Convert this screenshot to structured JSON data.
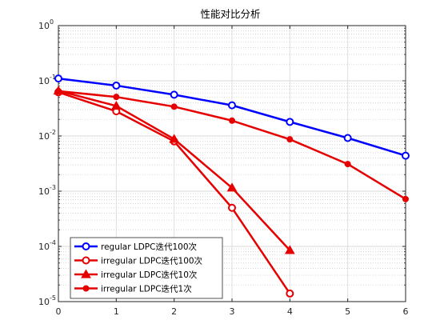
{
  "chart_data": {
    "type": "line",
    "title": "性能对比分析",
    "xlabel": "",
    "ylabel": "",
    "x": [
      0,
      1,
      2,
      3,
      4,
      5,
      6
    ],
    "xlim": [
      0,
      6
    ],
    "ylim": [
      1e-05,
      1
    ],
    "yscale": "log",
    "x_ticks": [
      "0",
      "1",
      "2",
      "3",
      "4",
      "5",
      "6"
    ],
    "y_ticks": [
      {
        "base": "10",
        "exp": "0"
      },
      {
        "base": "10",
        "exp": "-1"
      },
      {
        "base": "10",
        "exp": "-2"
      },
      {
        "base": "10",
        "exp": "-3"
      },
      {
        "base": "10",
        "exp": "-4"
      },
      {
        "base": "10",
        "exp": "-5"
      }
    ],
    "grid": true,
    "legend_position": "bottom-left",
    "series": [
      {
        "name": "regular LDPC迭代100次",
        "color": "#0000ff",
        "marker": "circle-open",
        "values": [
          0.11,
          0.082,
          0.056,
          0.036,
          0.018,
          0.0092,
          0.0044
        ]
      },
      {
        "name": "irregular LDPC迭代100次",
        "color": "#e60000",
        "marker": "circle-open",
        "values": [
          0.062,
          0.028,
          0.008,
          0.0005,
          1.4e-05,
          null,
          null
        ]
      },
      {
        "name": "irregular LDPC迭代10次",
        "color": "#e60000",
        "marker": "triangle-filled",
        "values": [
          0.066,
          0.035,
          0.0088,
          0.00115,
          8.5e-05,
          null,
          null
        ]
      },
      {
        "name": "irregular LDPC迭代1次",
        "color": "#e60000",
        "marker": "circle-filled",
        "values": [
          0.065,
          0.051,
          0.034,
          0.019,
          0.0087,
          0.0031,
          0.00072
        ]
      }
    ]
  }
}
